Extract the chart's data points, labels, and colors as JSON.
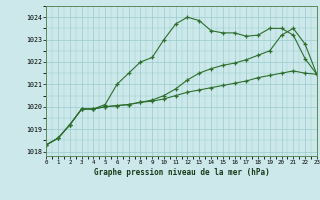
{
  "background_color": "#cce8ea",
  "grid_color": "#99cccc",
  "line_color": "#2d6e2d",
  "title": "Graphe pression niveau de la mer (hPa)",
  "xlim": [
    0,
    23
  ],
  "ylim": [
    1017.8,
    1024.5
  ],
  "yticks": [
    1018,
    1019,
    1020,
    1021,
    1022,
    1023,
    1024
  ],
  "xticks": [
    0,
    1,
    2,
    3,
    4,
    5,
    6,
    7,
    8,
    9,
    10,
    11,
    12,
    13,
    14,
    15,
    16,
    17,
    18,
    19,
    20,
    21,
    22,
    23
  ],
  "series1": [
    1018.3,
    1018.6,
    1019.2,
    1019.9,
    1019.9,
    1020.1,
    1021.0,
    1021.5,
    1022.0,
    1022.2,
    1023.0,
    1023.7,
    1024.0,
    1023.85,
    1023.4,
    1023.3,
    1023.3,
    1023.15,
    1023.2,
    1023.5,
    1023.5,
    1023.2,
    1022.15,
    1021.45
  ],
  "series2": [
    1018.3,
    1018.6,
    1019.2,
    1019.9,
    1019.9,
    1020.0,
    1020.05,
    1020.1,
    1020.2,
    1020.3,
    1020.5,
    1020.8,
    1021.2,
    1021.5,
    1021.7,
    1021.85,
    1021.95,
    1022.1,
    1022.3,
    1022.5,
    1023.2,
    1023.5,
    1022.8,
    1021.45
  ],
  "series3": [
    1018.3,
    1018.6,
    1019.2,
    1019.9,
    1019.9,
    1020.0,
    1020.05,
    1020.1,
    1020.2,
    1020.25,
    1020.35,
    1020.5,
    1020.65,
    1020.75,
    1020.85,
    1020.95,
    1021.05,
    1021.15,
    1021.3,
    1021.4,
    1021.5,
    1021.6,
    1021.5,
    1021.45
  ]
}
